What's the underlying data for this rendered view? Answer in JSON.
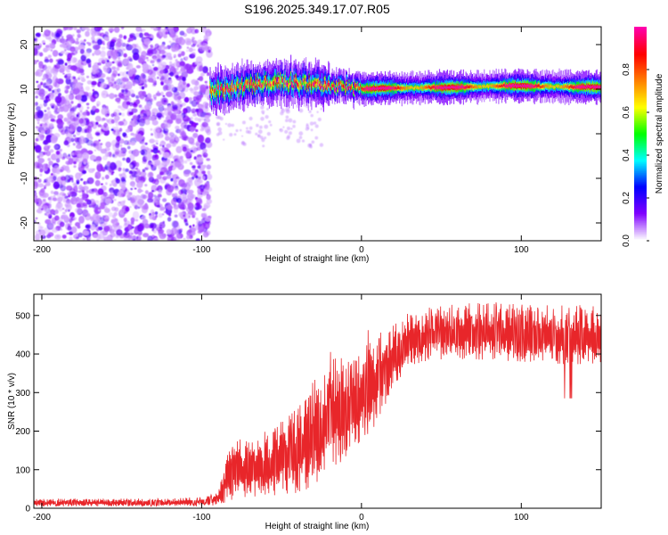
{
  "title": "S196.2025.349.17.07.R05",
  "colors": {
    "axis": "#000000",
    "snr_line": "#e8262a",
    "background": "#ffffff"
  },
  "chart_data": [
    {
      "type": "heatmap",
      "title": "",
      "xlabel": "Height of straight line (km)",
      "ylabel": "Frequency (Hz)",
      "xlim": [
        -205,
        150
      ],
      "ylim": [
        -24,
        24
      ],
      "xticks": [
        -200,
        -100,
        0,
        100
      ],
      "yticks": [
        -20,
        -10,
        0,
        10,
        20
      ],
      "colorbar": {
        "label": "Normalized spectral amplitude",
        "range": [
          0,
          1
        ],
        "ticks": [
          "0.0",
          "0.2",
          "0.4",
          "0.6",
          "0.8"
        ],
        "tick_values": [
          0.0,
          0.2,
          0.4,
          0.6,
          0.8
        ],
        "colormap": [
          "#ffffff",
          "#8000ff",
          "#0000ff",
          "#00ffff",
          "#00ff00",
          "#ffff00",
          "#ff8000",
          "#ff0000",
          "#ff00aa"
        ]
      },
      "ridge": {
        "x": [
          -95,
          -80,
          -60,
          -40,
          -20,
          -10,
          0,
          10,
          30,
          60,
          90,
          120,
          150
        ],
        "frequency": [
          9.5,
          10.5,
          11.5,
          11.5,
          11.0,
          10.5,
          10.0,
          10.2,
          10.3,
          10.4,
          10.8,
          10.6,
          10.5
        ]
      },
      "noise_region": {
        "x_range": [
          -205,
          -95
        ],
        "frequency_range": [
          -24,
          24
        ]
      }
    },
    {
      "type": "line",
      "title": "",
      "xlabel": "Height of straight line (km)",
      "ylabel": "SNR (10 * v/v)",
      "xlim": [
        -205,
        150
      ],
      "ylim": [
        0,
        555
      ],
      "xticks": [
        -200,
        -100,
        0,
        100
      ],
      "yticks": [
        0,
        100,
        200,
        300,
        400,
        500
      ],
      "series": [
        {
          "name": "SNR",
          "x": [
            -205,
            -180,
            -150,
            -120,
            -100,
            -90,
            -85,
            -80,
            -70,
            -60,
            -50,
            -40,
            -30,
            -25,
            -20,
            -15,
            -10,
            -5,
            0,
            5,
            10,
            15,
            20,
            25,
            30,
            40,
            50,
            60,
            80,
            100,
            120,
            130,
            140,
            150
          ],
          "lower": [
            5,
            5,
            5,
            5,
            5,
            8,
            15,
            20,
            25,
            30,
            35,
            40,
            55,
            75,
            95,
            110,
            130,
            150,
            170,
            190,
            220,
            260,
            300,
            340,
            360,
            380,
            385,
            385,
            385,
            380,
            375,
            370,
            370,
            375
          ],
          "upper": [
            25,
            25,
            25,
            25,
            30,
            40,
            130,
            190,
            170,
            200,
            230,
            260,
            330,
            360,
            420,
            400,
            390,
            400,
            420,
            480,
            460,
            450,
            480,
            500,
            510,
            520,
            525,
            530,
            535,
            530,
            530,
            525,
            530,
            520
          ]
        }
      ]
    }
  ]
}
